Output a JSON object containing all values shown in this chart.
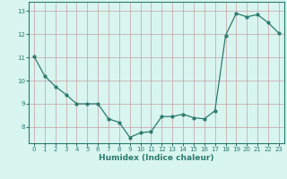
{
  "x": [
    0,
    1,
    2,
    3,
    4,
    5,
    6,
    7,
    8,
    9,
    10,
    11,
    12,
    13,
    14,
    15,
    16,
    17,
    18,
    19,
    20,
    21,
    22,
    23
  ],
  "y": [
    11.05,
    10.2,
    9.75,
    9.4,
    9.0,
    9.0,
    9.0,
    8.35,
    8.2,
    7.55,
    7.75,
    7.8,
    8.45,
    8.45,
    8.55,
    8.4,
    8.35,
    8.7,
    11.95,
    12.9,
    12.75,
    12.85,
    12.5,
    12.05
  ],
  "xlabel": "Humidex (Indice chaleur)",
  "xlim": [
    -0.5,
    23.5
  ],
  "ylim": [
    7.3,
    13.4
  ],
  "yticks": [
    8,
    9,
    10,
    11,
    12,
    13
  ],
  "xticks": [
    0,
    1,
    2,
    3,
    4,
    5,
    6,
    7,
    8,
    9,
    10,
    11,
    12,
    13,
    14,
    15,
    16,
    17,
    18,
    19,
    20,
    21,
    22,
    23
  ],
  "line_color": "#2d7a6e",
  "marker_size": 2.0,
  "line_width": 0.9,
  "bg_color": "#d8f5f0",
  "grid_color": "#c8a0a0",
  "axis_color": "#2d7a6e",
  "tick_color": "#2d7a6e",
  "label_color": "#2d7a6e",
  "label_fontsize": 6.5,
  "tick_fontsize": 5.0
}
